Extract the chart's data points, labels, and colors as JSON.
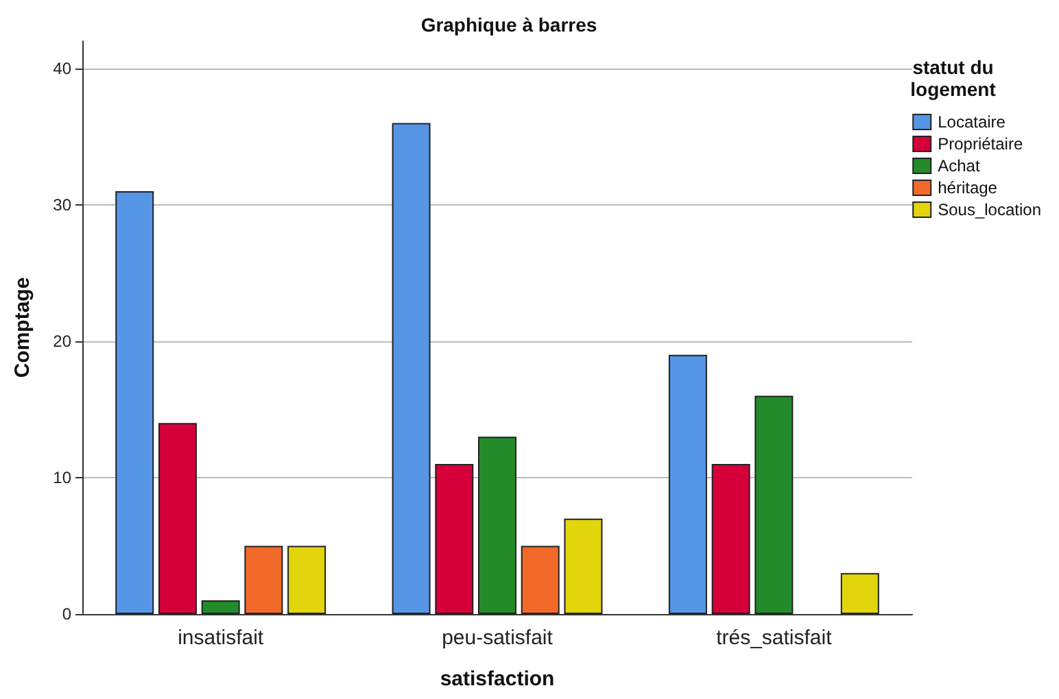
{
  "chart_data": {
    "type": "bar",
    "title": "Graphique à barres",
    "xlabel": "satisfaction",
    "ylabel": "Comptage",
    "legend_title": "statut du\nlogement",
    "categories": [
      "insatisfait",
      "peu-satisfait",
      "trés_satisfait"
    ],
    "series": [
      {
        "name": "Locataire",
        "color": "#5596e6",
        "values": [
          31,
          36,
          19
        ]
      },
      {
        "name": "Propriétaire",
        "color": "#d5003a",
        "values": [
          14,
          11,
          11
        ]
      },
      {
        "name": "Achat",
        "color": "#238b2a",
        "values": [
          1,
          13,
          16
        ]
      },
      {
        "name": "héritage",
        "color": "#f26a2a",
        "values": [
          5,
          5,
          null
        ]
      },
      {
        "name": "Sous_location",
        "color": "#e3d50b",
        "values": [
          5,
          7,
          3
        ]
      }
    ],
    "ylim": [
      0,
      42
    ],
    "yticks": [
      0,
      10,
      20,
      30,
      40
    ],
    "grid": "y",
    "legend": "right"
  }
}
